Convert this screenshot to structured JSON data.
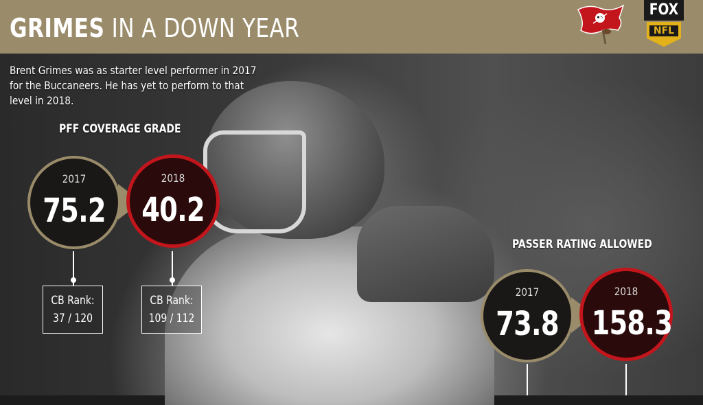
{
  "header": {
    "title_bold": "GRIMES",
    "title_rest": " IN A DOWN YEAR",
    "background_color": "#9a8c6a",
    "team_logo_icon": "buccaneers-flag-icon",
    "network_logo": "FOX NFL",
    "network_logo_fox": "FOX",
    "network_logo_nfl": "NFL"
  },
  "subtitle": "Brent Grimes was as starter level performer in 2017 for the Buccaneers. He has yet to perform to that level in 2018.",
  "pff": {
    "label": "PFF COVERAGE GRADE",
    "y2017": {
      "year": "2017",
      "value": "75.2",
      "rank_label": "CB Rank:",
      "rank": "37 / 120"
    },
    "y2018": {
      "year": "2018",
      "value": "40.2",
      "rank_label": "CB Rank:",
      "rank": "109 / 112"
    }
  },
  "passer": {
    "label": "PASSER RATING ALLOWED",
    "y2017": {
      "year": "2017",
      "value": "73.8"
    },
    "y2018": {
      "year": "2018",
      "value": "158.3"
    }
  },
  "colors": {
    "gold": "#9a8c6a",
    "red": "#c3161c",
    "dark": "#1a1816"
  }
}
